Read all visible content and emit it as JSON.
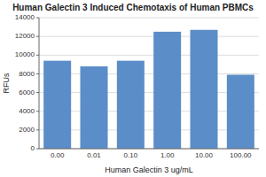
{
  "chart_data": {
    "type": "bar",
    "title": "Human Galectin 3 Induced Chemotaxis of Human PBMCs",
    "xlabel": "Human Galectin 3 ug/mL",
    "ylabel": "RFUs",
    "categories": [
      "0.00",
      "0.01",
      "0.10",
      "1.00",
      "10.00",
      "100.00"
    ],
    "values": [
      9400,
      8800,
      9400,
      12500,
      12700,
      7900
    ],
    "color": "#5b8dc8",
    "ylim": [
      0,
      14000
    ],
    "yticks": [
      0,
      2000,
      4000,
      6000,
      8000,
      10000,
      12000,
      14000
    ],
    "grid": true
  }
}
